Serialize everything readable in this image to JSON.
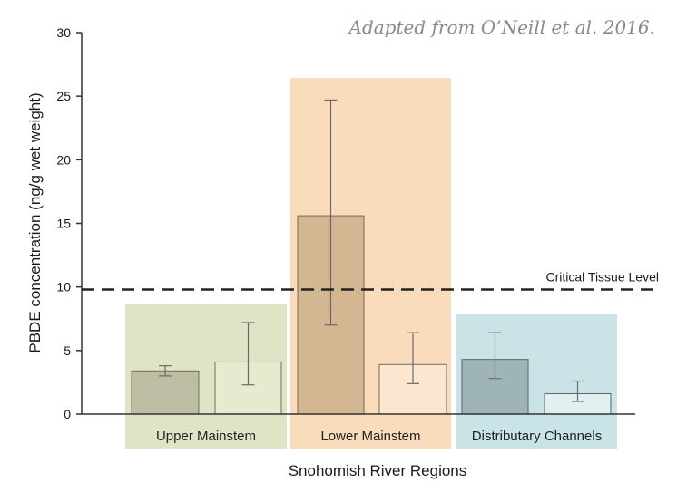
{
  "chart_data": {
    "type": "bar",
    "title": "",
    "source_note": "Adapted from O’Neill et al. 2016.",
    "xlabel": "Snohomish River Regions",
    "ylabel": "PBDE concentration (ng/g wet weight)",
    "ylim": [
      0,
      30
    ],
    "yticks": [
      "0",
      "5",
      "10",
      "15",
      "20",
      "25",
      "30"
    ],
    "grid": false,
    "reference_line": {
      "value": 9.8,
      "label": "Critical Tissue Level",
      "style": "dashed"
    },
    "regions": [
      {
        "label": "Upper Mainstem",
        "background_color": "#dfe4c6",
        "bars": [
          {
            "value": 3.4,
            "error_low": 3.0,
            "error_high": 3.8,
            "fill": "#bcbda2",
            "stroke": "#6e705c"
          },
          {
            "value": 4.1,
            "error_low": 2.3,
            "error_high": 7.2,
            "fill": "#e6eacf",
            "stroke": "#6e705c"
          }
        ]
      },
      {
        "label": "Lower Mainstem",
        "background_color": "#f8dcbc",
        "bars": [
          {
            "value": 15.6,
            "error_low": 7.0,
            "error_high": 24.7,
            "fill": "#d3b692",
            "stroke": "#7a6a55"
          },
          {
            "value": 3.9,
            "error_low": 2.4,
            "error_high": 6.4,
            "fill": "#fbe6cf",
            "stroke": "#7a6a55"
          }
        ]
      },
      {
        "label": "Distributary Channels",
        "background_color": "#c9e3e7",
        "bars": [
          {
            "value": 4.3,
            "error_low": 2.8,
            "error_high": 6.4,
            "fill": "#9fb4b7",
            "stroke": "#566466"
          },
          {
            "value": 1.6,
            "error_low": 1.0,
            "error_high": 2.6,
            "fill": "#e3f0f2",
            "stroke": "#566466"
          }
        ]
      }
    ]
  }
}
